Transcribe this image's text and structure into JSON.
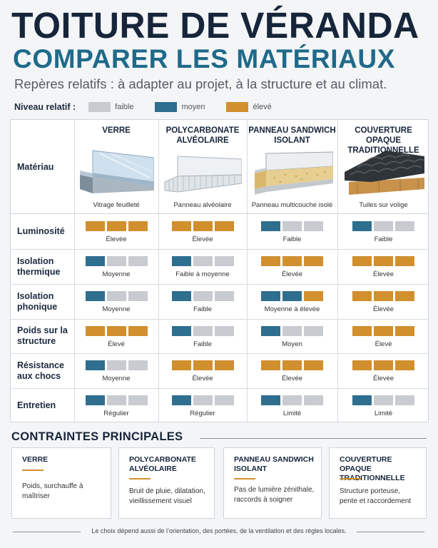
{
  "header": {
    "title": "TOITURE DE VÉRANDA",
    "subtitle_title": "COMPARER LES MATÉRIAUX",
    "note": "Repères relatifs : à adapter au projet, à la structure et au climat."
  },
  "legend": {
    "label": "Niveau relatif :",
    "items": [
      {
        "text": "faible",
        "color": "#c8cbcf"
      },
      {
        "text": "moyen",
        "color": "#2e6e8e"
      },
      {
        "text": "élevé",
        "color": "#d18f2e"
      }
    ]
  },
  "table": {
    "material_label": "Matériau",
    "columns": [
      {
        "name": "VERRE",
        "caption": "Vitrage feuilleté",
        "icon": "glass-panel-icon"
      },
      {
        "name": "POLYCARBONATE ALVÉOLAIRE",
        "caption": "Panneau alvéolaire",
        "icon": "polycarbonate-panel-icon"
      },
      {
        "name": "PANNEAU SANDWICH ISOLANT",
        "caption": "Panneau multicouche isolé",
        "icon": "sandwich-panel-icon"
      },
      {
        "name": "COUVERTURE OPAQUE TRADITIONNELLE",
        "caption": "Tuiles sur volige",
        "icon": "roof-tiles-icon"
      }
    ],
    "rows": [
      {
        "label": "Luminosité",
        "cells": [
          {
            "level": 3,
            "text": "Élevée"
          },
          {
            "level": 3,
            "text": "Élevée"
          },
          {
            "level": 1,
            "text": "Faible"
          },
          {
            "level": 1,
            "text": "Faible"
          }
        ]
      },
      {
        "label": "Isolation thermique",
        "cells": [
          {
            "level": 2,
            "text": "Moyenne"
          },
          {
            "level": 1,
            "text": "Faible à moyenne"
          },
          {
            "level": 3,
            "text": "Élevée"
          },
          {
            "level": 3,
            "text": "Élevée"
          }
        ]
      },
      {
        "label": "Isolation phonique",
        "cells": [
          {
            "level": 2,
            "text": "Moyenne"
          },
          {
            "level": 1,
            "text": "Faible"
          },
          {
            "level": 2.5,
            "text": "Moyenne à élevée"
          },
          {
            "level": 3,
            "text": "Élevée"
          }
        ]
      },
      {
        "label": "Poids sur la structure",
        "cells": [
          {
            "level": 3,
            "text": "Élevé"
          },
          {
            "level": 1,
            "text": "Faible"
          },
          {
            "level": 2,
            "text": "Moyen"
          },
          {
            "level": 3,
            "text": "Élevé"
          }
        ]
      },
      {
        "label": "Résistance aux chocs",
        "cells": [
          {
            "level": 2,
            "text": "Moyenne"
          },
          {
            "level": 3,
            "text": "Élevée"
          },
          {
            "level": 3,
            "text": "Élevée"
          },
          {
            "level": 3,
            "text": "Élevée"
          }
        ]
      },
      {
        "label": "Entretien",
        "cells": [
          {
            "level": 1,
            "text": "Régulier"
          },
          {
            "level": 1,
            "text": "Régulier"
          },
          {
            "level": 1,
            "text": "Limité"
          },
          {
            "level": 1,
            "text": "Limité"
          }
        ]
      }
    ]
  },
  "constraints": {
    "title": "CONTRAINTES PRINCIPALES",
    "cards": [
      {
        "title": "VERRE",
        "text": "Poids, surchauffe à maîtriser"
      },
      {
        "title": "POLYCARBONATE ALVÉOLAIRE",
        "text": "Bruit de pluie, dilatation, vieillissement visuel"
      },
      {
        "title": "PANNEAU SANDWICH ISOLANT",
        "text": "Pas de lumière zénithale, raccords à soigner"
      },
      {
        "title": "COUVERTURE OPAQUE TRADITIONNELLE",
        "text": "Structure porteuse, pente et raccordement"
      }
    ]
  },
  "footer": "Le choix dépend aussi de l’orientation, des portées, de la ventilation et des règles locales."
}
